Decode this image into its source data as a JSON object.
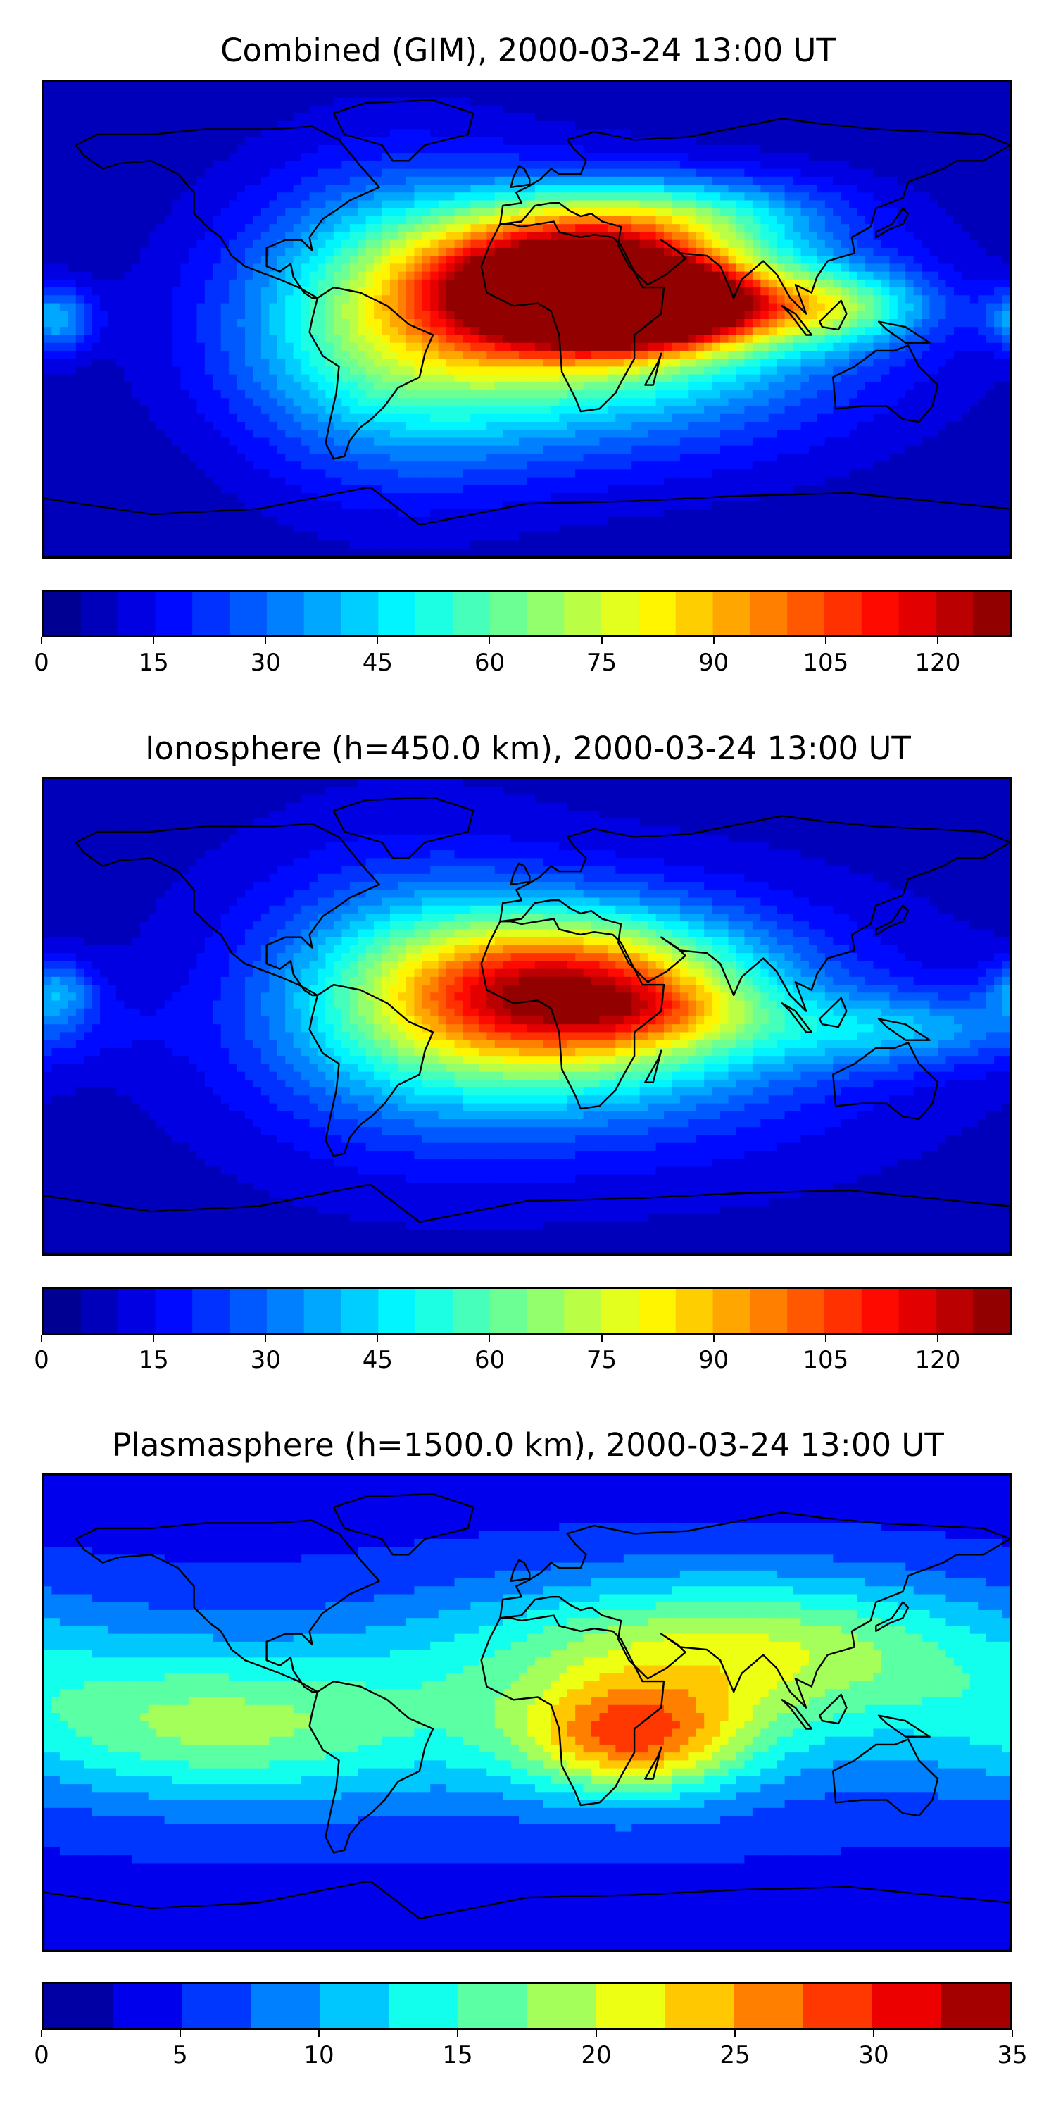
{
  "panels": [
    {
      "title": "Combined (GIM), 2000-03-24 13:00 UT",
      "colorbar": {
        "min": 0,
        "max": 130,
        "levels": 26,
        "ticks": [
          "0",
          "15",
          "30",
          "45",
          "60",
          "75",
          "90",
          "105",
          "120"
        ]
      },
      "field": {
        "background": 6,
        "blobs": [
          {
            "lon": 20,
            "lat": 15,
            "sx": 40,
            "sy": 18,
            "v": 112
          },
          {
            "lon": 45,
            "lat": 5,
            "sx": 30,
            "sy": 10,
            "v": 95
          },
          {
            "lon": 20,
            "lat": -5,
            "sx": 70,
            "sy": 30,
            "v": 55
          },
          {
            "lon": -50,
            "lat": 0,
            "sx": 40,
            "sy": 40,
            "v": 35
          },
          {
            "lon": 115,
            "lat": 5,
            "sx": 25,
            "sy": 10,
            "v": 40
          },
          {
            "lon": 60,
            "lat": 40,
            "sx": 40,
            "sy": 10,
            "v": 25
          },
          {
            "lon": -175,
            "lat": 0,
            "sx": 10,
            "sy": 8,
            "v": 30
          }
        ]
      }
    },
    {
      "title": "Ionosphere  (h=450.0 km), 2000-03-24 13:00 UT",
      "colorbar": {
        "min": 0,
        "max": 130,
        "levels": 26,
        "ticks": [
          "0",
          "15",
          "30",
          "45",
          "60",
          "75",
          "90",
          "105",
          "120"
        ]
      },
      "field": {
        "background": 8,
        "blobs": [
          {
            "lon": 15,
            "lat": 10,
            "sx": 45,
            "sy": 20,
            "v": 82
          },
          {
            "lon": 45,
            "lat": 2,
            "sx": 25,
            "sy": 8,
            "v": 15
          },
          {
            "lon": 20,
            "lat": -5,
            "sx": 70,
            "sy": 30,
            "v": 35
          },
          {
            "lon": -45,
            "lat": 10,
            "sx": 40,
            "sy": 35,
            "v": 25
          },
          {
            "lon": 140,
            "lat": -5,
            "sx": 40,
            "sy": 10,
            "v": 25
          },
          {
            "lon": -175,
            "lat": 10,
            "sx": 10,
            "sy": 8,
            "v": 25
          }
        ]
      }
    },
    {
      "title": "Plasmasphere (h=1500.0 km), 2000-03-24 13:00 UT",
      "colorbar": {
        "min": 0,
        "max": 35,
        "levels": 14,
        "ticks": [
          "0",
          "5",
          "10",
          "15",
          "20",
          "25",
          "30",
          "35"
        ]
      },
      "field": {
        "background": 4,
        "blobs": [
          {
            "lon": 40,
            "lat": -10,
            "sx": 30,
            "sy": 15,
            "v": 17
          },
          {
            "lon": 80,
            "lat": 25,
            "sx": 70,
            "sy": 20,
            "v": 13
          },
          {
            "lon": -120,
            "lat": -5,
            "sx": 60,
            "sy": 20,
            "v": 10
          },
          {
            "lon": 0,
            "lat": 0,
            "sx": 140,
            "sy": 30,
            "v": 6
          }
        ]
      }
    }
  ],
  "colormap": "jet"
}
